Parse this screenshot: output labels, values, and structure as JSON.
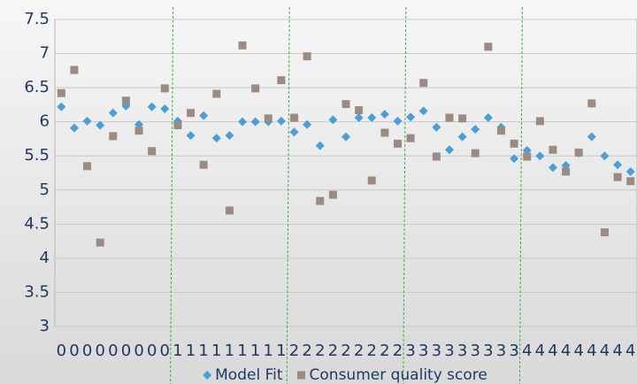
{
  "chart_data": {
    "type": "scatter",
    "categories": [
      "0",
      "0",
      "0",
      "0",
      "0",
      "0",
      "0",
      "0",
      "0",
      "1",
      "1",
      "1",
      "1",
      "1",
      "1",
      "1",
      "1",
      "1",
      "2",
      "2",
      "2",
      "2",
      "2",
      "2",
      "2",
      "2",
      "2",
      "3",
      "3",
      "3",
      "3",
      "3",
      "3",
      "3",
      "3",
      "3",
      "4",
      "4",
      "4",
      "4",
      "4",
      "4",
      "4",
      "4",
      "4"
    ],
    "series": [
      {
        "name": "Model Fit",
        "color": "#4a9fd8",
        "marker": "diamond",
        "values": [
          6.22,
          5.91,
          6.01,
          5.95,
          6.13,
          6.23,
          5.96,
          6.22,
          6.19,
          6.01,
          5.8,
          6.09,
          5.76,
          5.8,
          6.0,
          6.0,
          6.0,
          6.01,
          5.85,
          5.96,
          5.65,
          6.03,
          5.78,
          6.06,
          6.06,
          6.11,
          6.01,
          6.07,
          6.16,
          5.92,
          5.59,
          5.78,
          5.89,
          6.06,
          5.92,
          5.46,
          5.58,
          5.5,
          5.33,
          5.36,
          5.54,
          5.78,
          5.5,
          5.37,
          5.27
        ]
      },
      {
        "name": "Consumer quality score",
        "color": "#9c8b82",
        "marker": "square",
        "values": [
          6.42,
          6.76,
          5.35,
          4.23,
          5.79,
          6.31,
          5.87,
          5.57,
          6.49,
          5.95,
          6.13,
          5.37,
          6.41,
          4.7,
          7.12,
          6.49,
          6.05,
          6.61,
          6.06,
          6.96,
          4.84,
          4.93,
          6.26,
          6.17,
          5.14,
          5.84,
          5.68,
          5.76,
          6.57,
          5.49,
          6.06,
          6.05,
          5.54,
          7.1,
          5.87,
          5.68,
          5.49,
          6.01,
          5.59,
          5.27,
          5.55,
          6.27,
          4.38,
          5.19,
          5.13
        ]
      }
    ],
    "ylim": [
      3,
      7.5
    ],
    "yticks": [
      3,
      3.5,
      4,
      4.5,
      5,
      5.5,
      6,
      6.5,
      7,
      7.5
    ],
    "grid": true,
    "legend": "bottom"
  }
}
